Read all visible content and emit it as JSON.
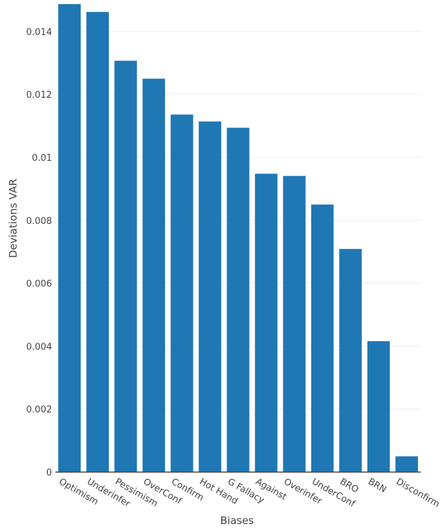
{
  "chart_data": {
    "type": "bar",
    "categories": [
      "Optimism",
      "Underinfer",
      "Pessimism",
      "OverConf",
      "Confirm",
      "Hot Hand",
      "G Fallacy",
      "Against",
      "Overinfer",
      "UnderConf",
      "BRO",
      "BRN",
      "Disconfirm"
    ],
    "values": [
      0.01487,
      0.01462,
      0.01307,
      0.0125,
      0.01136,
      0.01114,
      0.01094,
      0.00948,
      0.00941,
      0.0085,
      0.00709,
      0.00416,
      0.0005
    ],
    "xlabel": "Biases",
    "ylabel": "Deviations VAR",
    "ylim": [
      0,
      0.015
    ],
    "yticks": [
      0,
      0.002,
      0.004,
      0.006,
      0.008,
      0.01,
      0.012,
      0.014
    ],
    "ytick_labels": [
      "0",
      "0.002",
      "0.004",
      "0.006",
      "0.008",
      "0.01",
      "0.012",
      "0.014"
    ],
    "bar_color": "#1f77b4",
    "grid": true,
    "grid_color": "#eeeeee"
  }
}
